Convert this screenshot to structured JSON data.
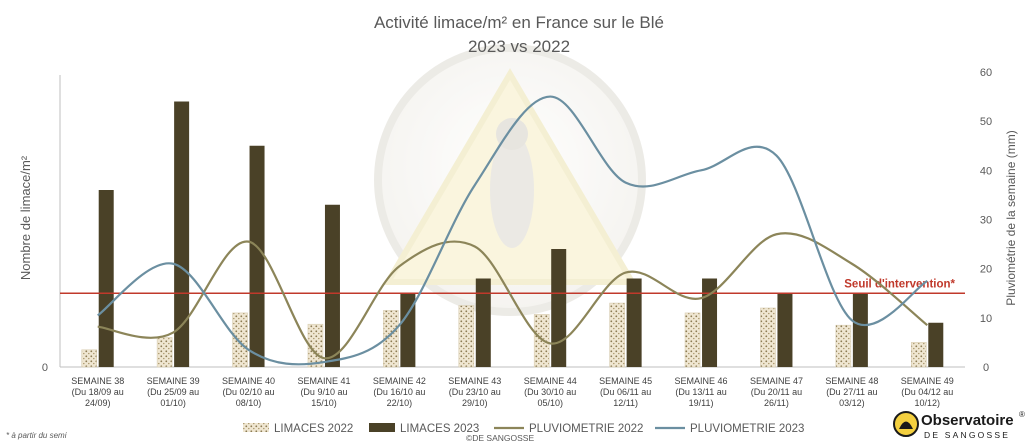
{
  "chart_data": {
    "type": "bar+line",
    "title_line1": "Activité limace/m² en France sur le Blé",
    "title_line2": "2023 vs 2022",
    "ylabel_left": "Nombre de limace/m²",
    "ylabel_right": "Pluviométrie de la semaine (mm)",
    "left_axis": {
      "min": 0,
      "max": 6,
      "tick_labels": [
        "0"
      ]
    },
    "right_axis": {
      "min": 0,
      "max": 60,
      "ticks": [
        0,
        10,
        20,
        30,
        40,
        50,
        60
      ]
    },
    "grid": false,
    "categories": [
      [
        "SEMAINE 38",
        "(Du 18/09 au",
        "24/09)"
      ],
      [
        "SEMAINE 39",
        "(Du 25/09 au",
        "01/10)"
      ],
      [
        "SEMAINE 40",
        "(Du 02/10 au",
        "08/10)"
      ],
      [
        "SEMAINE 41",
        "(Du 9/10 au",
        "15/10)"
      ],
      [
        "SEMAINE 42",
        "(Du 16/10 au",
        "22/10)"
      ],
      [
        "SEMAINE 43",
        "(Du 23/10 au",
        "29/10)"
      ],
      [
        "SEMAINE 44",
        "(Du 30/10 au",
        "05/10)"
      ],
      [
        "SEMAINE 45",
        "(Du 06/11 au",
        "12/11)"
      ],
      [
        "SEMAINE 46",
        "(Du 13/11 au",
        "19/11)"
      ],
      [
        "SEMAINE 47",
        "(Du 20/11 au",
        "26/11)"
      ],
      [
        "SEMAINE 48",
        "(Du 27/11 au",
        "03/12)"
      ],
      [
        "SEMAINE 49",
        "(Du 04/12 au",
        "10/12)"
      ]
    ],
    "bar_series": [
      {
        "name": "LIMACES 2022",
        "color": "#eadfc7",
        "pattern": "dots",
        "values": [
          0.35,
          0.6,
          1.1,
          0.87,
          1.15,
          1.25,
          1.07,
          1.3,
          1.1,
          1.2,
          0.85,
          0.5
        ]
      },
      {
        "name": "LIMACES 2023",
        "color": "#4a4127",
        "values": [
          3.6,
          5.4,
          4.5,
          3.3,
          1.5,
          1.8,
          2.4,
          1.8,
          1.8,
          1.5,
          1.5,
          0.9
        ]
      }
    ],
    "line_series": [
      {
        "name": "PLUVIOMETRIE 2022",
        "axis": "right",
        "color": "#8c8559",
        "values": [
          8.2,
          7.0,
          25.5,
          1.8,
          20.5,
          24.5,
          4.8,
          19.2,
          14.0,
          27.0,
          21.0,
          8.5
        ]
      },
      {
        "name": "PLUVIOMETRIE 2023",
        "axis": "right",
        "color": "#6b8fa1",
        "values": [
          10.5,
          21.0,
          3.5,
          1.0,
          8.5,
          37.0,
          55.0,
          37.5,
          40.0,
          43.0,
          9.5,
          17.5
        ]
      }
    ],
    "threshold": {
      "label": "Seuil d'intervention*",
      "value": 1.5,
      "color": "#c0392b"
    },
    "legend_position": "bottom",
    "footnote": "* à partir du semi",
    "copyright": "©DE SANGOSSE",
    "logo": {
      "brand": "Observatoire",
      "sub": "DE SANGOSSE",
      "mark": "®"
    }
  }
}
